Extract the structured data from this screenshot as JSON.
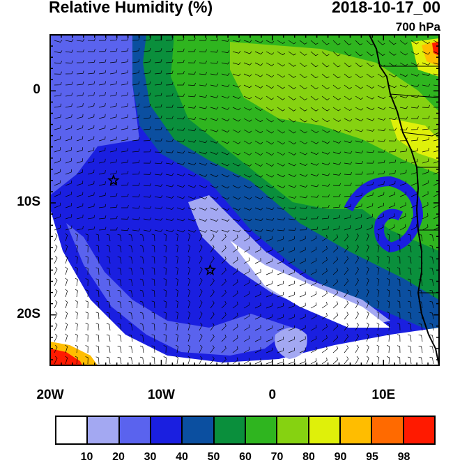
{
  "header": {
    "title": "Relative Humidity (%)",
    "datetime": "2018-10-17_00",
    "level": "700 hPa"
  },
  "axes": {
    "y_labels": [
      {
        "lat": 0,
        "text": "0"
      },
      {
        "lat": -10,
        "text": "10S"
      },
      {
        "lat": -20,
        "text": "20S"
      }
    ],
    "x_labels": [
      {
        "lon": -20,
        "text": "20W"
      },
      {
        "lon": -10,
        "text": "10W"
      },
      {
        "lon": 0,
        "text": "0"
      },
      {
        "lon": 10,
        "text": "10E"
      }
    ],
    "lon_range": [
      -20,
      15
    ],
    "lat_range": [
      -24.5,
      5
    ]
  },
  "colorbar": {
    "colors": [
      "#ffffff",
      "#a3a8f2",
      "#5a63ee",
      "#1a1fe0",
      "#0b4fa0",
      "#0a8f3c",
      "#2fb51f",
      "#86d211",
      "#dff00a",
      "#ffbd00",
      "#ff6a00",
      "#ff1a00"
    ],
    "labels": [
      "10",
      "20",
      "30",
      "40",
      "50",
      "60",
      "70",
      "80",
      "90",
      "95",
      "98"
    ]
  },
  "markers": [
    {
      "name": "star-marker-west",
      "lon": -14.3,
      "lat": -8.0
    },
    {
      "name": "star-marker-south",
      "lon": -5.6,
      "lat": -16.0
    }
  ]
}
